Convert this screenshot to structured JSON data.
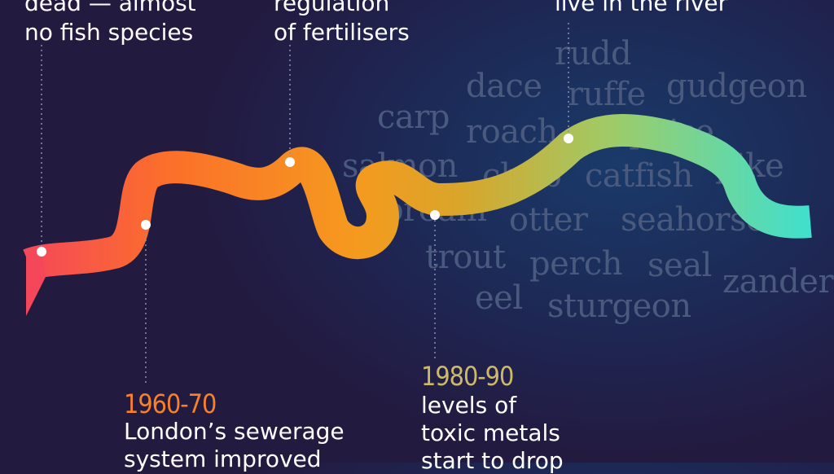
{
  "colors": {
    "background": "#231a40",
    "river_start": "#f5475a",
    "river_mid": "#f59a1e",
    "river_end": "#3ee0d0",
    "species_text": "#4a5a7e",
    "year_orange": "#f7812a",
    "year_gold": "#cdb96a"
  },
  "species": [
    "rudd",
    "dace",
    "ruffe",
    "gudgeon",
    "carp",
    "roach",
    "porpoise",
    "salmon",
    "chub",
    "catfish",
    "pike",
    "bream",
    "otter",
    "seahorse",
    "trout",
    "perch",
    "seal",
    "zander",
    "eel",
    "sturgeon"
  ],
  "captions": {
    "c1": {
      "line1": "dead — almost",
      "line2": "no fish species"
    },
    "c2": {
      "line1": "regulation",
      "line2": "of fertilisers"
    },
    "c3": {
      "line1": "live in the river"
    },
    "c4": {
      "year": "1960-70",
      "line1": "London’s sewerage",
      "line2": "system improved"
    },
    "c5": {
      "year": "1980-90",
      "line1": "levels of",
      "line2": "toxic metals",
      "line3": "start to drop"
    }
  }
}
